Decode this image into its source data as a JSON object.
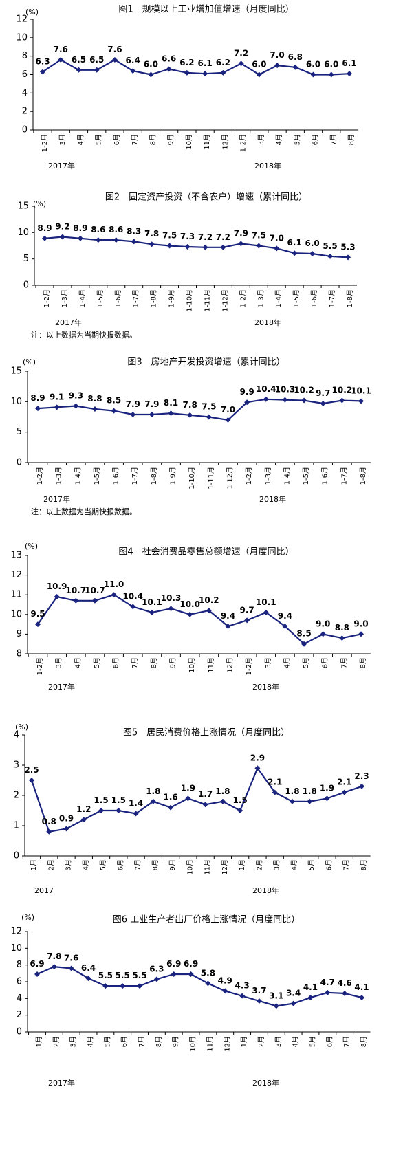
{
  "chart_data": [
    {
      "type": "line",
      "title": "图1　规模以上工业增加值增速（月度同比）",
      "unit": "(%)",
      "ylim": [
        0,
        12
      ],
      "yticks": [
        "0",
        "2",
        "4",
        "6",
        "8",
        "10",
        "12"
      ],
      "categories": [
        "1-2月",
        "3月",
        "4月",
        "5月",
        "6月",
        "7月",
        "8月",
        "9月",
        "10月",
        "11月",
        "12月",
        "1-2月",
        "3月",
        "4月",
        "5月",
        "6月",
        "7月",
        "8月"
      ],
      "values": [
        6.3,
        7.6,
        6.5,
        6.5,
        7.6,
        6.4,
        6.0,
        6.6,
        6.2,
        6.1,
        6.2,
        7.2,
        6.0,
        7.0,
        6.8,
        6.0,
        6.0,
        6.1
      ],
      "labels": [
        "6.3",
        "7.6",
        "6.5",
        "6.5",
        "7.6",
        "6.4",
        "6.0",
        "6.6",
        "6.2",
        "6.1",
        "6.2",
        "7.2",
        "6.0",
        "7.0",
        "6.8",
        "6.0",
        "6.0",
        "6.1"
      ],
      "years": [
        "2017年",
        "2018年"
      ],
      "note": "",
      "color": "#1a237e",
      "grid": false
    },
    {
      "type": "line",
      "title": "图2　固定资产投资（不含农户）增速（累计同比）",
      "unit": "(%)",
      "ylim": [
        0,
        15
      ],
      "yticks": [
        "0",
        "5",
        "10",
        "15"
      ],
      "categories": [
        "1-2月",
        "1-3月",
        "1-4月",
        "1-5月",
        "1-6月",
        "1-7月",
        "1-8月",
        "1-9月",
        "1-10月",
        "1-11月",
        "1-12月",
        "1-2月",
        "1-3月",
        "1-4月",
        "1-5月",
        "1-6月",
        "1-7月",
        "1-8月"
      ],
      "values": [
        8.9,
        9.2,
        8.9,
        8.6,
        8.6,
        8.3,
        7.8,
        7.5,
        7.3,
        7.2,
        7.2,
        7.9,
        7.5,
        7.0,
        6.1,
        6.0,
        5.5,
        5.3
      ],
      "labels": [
        "8.9",
        "9.2",
        "8.9",
        "8.6",
        "8.6",
        "8.3",
        "7.8",
        "7.5",
        "7.3",
        "7.2",
        "7.2",
        "7.9",
        "7.5",
        "7.0",
        "6.1",
        "6.0",
        "5.5",
        "5.3"
      ],
      "years": [
        "2017年",
        "2018年"
      ],
      "note": "注：以上数据为当期快报数据。",
      "color": "#1a237e",
      "grid": false
    },
    {
      "type": "line",
      "title": "图3　房地产开发投资增速（累计同比）",
      "unit": "(%)",
      "ylim": [
        0,
        15
      ],
      "yticks": [
        "0",
        "5",
        "10",
        "15"
      ],
      "categories": [
        "1-2月",
        "1-3月",
        "1-4月",
        "1-5月",
        "1-6月",
        "1-7月",
        "1-8月",
        "1-9月",
        "1-10月",
        "1-11月",
        "1-12月",
        "1-2月",
        "1-3月",
        "1-4月",
        "1-5月",
        "1-6月",
        "1-7月",
        "1-8月"
      ],
      "values": [
        8.9,
        9.1,
        9.3,
        8.8,
        8.5,
        7.9,
        7.9,
        8.1,
        7.8,
        7.5,
        7.0,
        9.9,
        10.4,
        10.3,
        10.2,
        9.7,
        10.2,
        10.1
      ],
      "labels": [
        "8.9",
        "9.1",
        "9.3",
        "8.8",
        "8.5",
        "7.9",
        "7.9",
        "8.1",
        "7.8",
        "7.5",
        "7.0",
        "9.9",
        "10.4",
        "10.3",
        "10.2",
        "9.7",
        "10.2",
        "10.1"
      ],
      "years": [
        "2017年",
        "2018年"
      ],
      "note": "注：以上数据为当期快报数据。",
      "color": "#1a237e",
      "grid": false
    },
    {
      "type": "line",
      "title": "图4　社会消费品零售总额增速（月度同比）",
      "unit": "(%)",
      "ylim": [
        8,
        13
      ],
      "yticks": [
        "8",
        "9",
        "10",
        "11",
        "12",
        "13"
      ],
      "categories": [
        "1-2月",
        "3月",
        "4月",
        "5月",
        "6月",
        "7月",
        "8月",
        "9月",
        "10月",
        "11月",
        "12月",
        "1-2月",
        "3月",
        "4月",
        "5月",
        "6月",
        "7月",
        "8月"
      ],
      "values": [
        9.5,
        10.9,
        10.7,
        10.7,
        11.0,
        10.4,
        10.1,
        10.3,
        10.0,
        10.2,
        9.4,
        9.7,
        10.1,
        9.4,
        8.5,
        9.0,
        8.8,
        9.0
      ],
      "labels": [
        "9.5",
        "10.9",
        "10.7",
        "10.7",
        "11.0",
        "10.4",
        "10.1",
        "10.3",
        "10.0",
        "10.2",
        "9.4",
        "9.7",
        "10.1",
        "9.4",
        "8.5",
        "9.0",
        "8.8",
        "9.0"
      ],
      "years": [
        "2017年",
        "2018年"
      ],
      "note": "",
      "color": "#1a237e",
      "grid": false
    },
    {
      "type": "line",
      "title": "图5　居民消费价格上涨情况（月度同比）",
      "unit": "(%)",
      "ylim": [
        0,
        4
      ],
      "yticks": [
        "0",
        "1",
        "2",
        "3",
        "4"
      ],
      "categories": [
        "1月",
        "2月",
        "3月",
        "4月",
        "5月",
        "6月",
        "7月",
        "8月",
        "9月",
        "10月",
        "11月",
        "12月",
        "1月",
        "2月",
        "3月",
        "4月",
        "5月",
        "6月",
        "7月",
        "8月"
      ],
      "values": [
        2.5,
        0.8,
        0.9,
        1.2,
        1.5,
        1.5,
        1.4,
        1.8,
        1.6,
        1.9,
        1.7,
        1.8,
        1.5,
        2.9,
        2.1,
        1.8,
        1.8,
        1.9,
        2.1,
        2.3
      ],
      "labels": [
        "2.5",
        "0.8",
        "0.9",
        "1.2",
        "1.5",
        "1.5",
        "1.4",
        "1.8",
        "1.6",
        "1.9",
        "1.7",
        "1.8",
        "1.5",
        "2.9",
        "2.1",
        "1.8",
        "1.8",
        "1.9",
        "2.1",
        "2.3"
      ],
      "years": [
        "2017",
        "2018年"
      ],
      "note": "",
      "color": "#1a237e",
      "grid": false
    },
    {
      "type": "line",
      "title": "图6  工业生产者出厂价格上涨情况（月度同比）",
      "unit": "(%)",
      "ylim": [
        0,
        12
      ],
      "yticks": [
        "0",
        "2",
        "4",
        "6",
        "8",
        "10",
        "12"
      ],
      "categories": [
        "1月",
        "2月",
        "3月",
        "4月",
        "5月",
        "6月",
        "7月",
        "8月",
        "9月",
        "10月",
        "11月",
        "12月",
        "1月",
        "2月",
        "3月",
        "4月",
        "5月",
        "6月",
        "7月",
        "8月"
      ],
      "values": [
        6.9,
        7.8,
        7.6,
        6.4,
        5.5,
        5.5,
        5.5,
        6.3,
        6.9,
        6.9,
        5.8,
        4.9,
        4.3,
        3.7,
        3.1,
        3.4,
        4.1,
        4.7,
        4.6,
        4.1
      ],
      "labels": [
        "6.9",
        "7.8",
        "7.6",
        "6.4",
        "5.5",
        "5.5",
        "5.5",
        "6.3",
        "6.9",
        "6.9",
        "5.8",
        "4.9",
        "4.3",
        "3.7",
        "3.1",
        "3.4",
        "4.1",
        "4.7",
        "4.6",
        "4.1"
      ],
      "years": [
        "2017年",
        "2018年"
      ],
      "note": "",
      "color": "#1a237e",
      "grid": false
    }
  ]
}
